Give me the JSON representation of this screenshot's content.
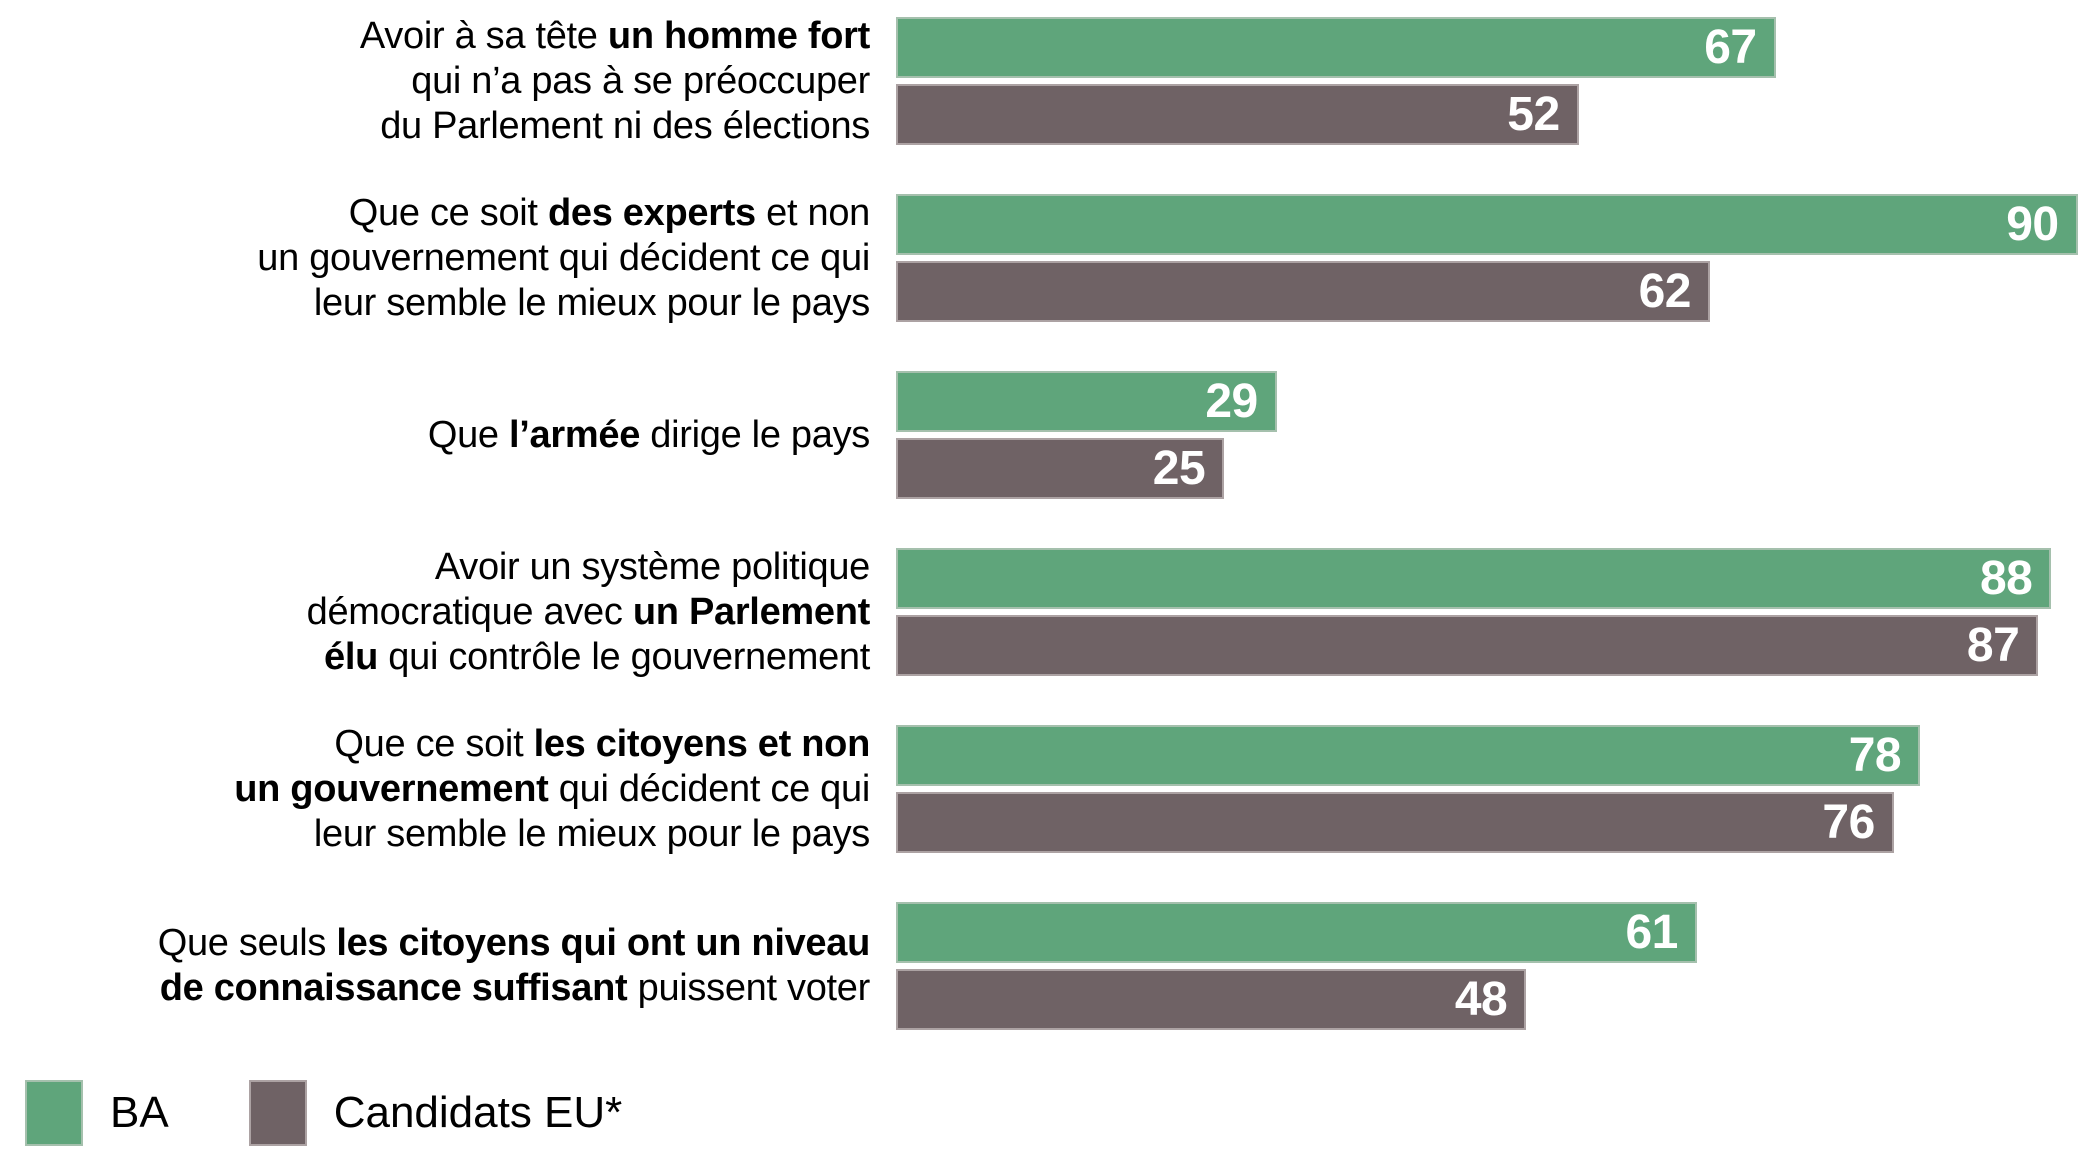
{
  "chart_data": {
    "type": "bar",
    "orientation": "horizontal",
    "title": "",
    "xlabel": "",
    "ylabel": "",
    "xlim": [
      0,
      91.4
    ],
    "grid": false,
    "legend_position": "bottom-left",
    "series_order": [
      "BA",
      "Candidats EU*"
    ],
    "bar_colors": {
      "BA": "#5FA57B",
      "Candidats EU*": "#6F6265"
    },
    "value_label_color": "#FFFFFF",
    "categories": [
      "Avoir à sa tête un homme fort qui n’a pas à se préoccuper du Parlement ni des élections",
      "Que ce soit des experts et non un gouvernement qui décident ce qui leur semble le mieux pour le pays",
      "Que l’armée dirige le pays",
      "Avoir un système politique démocratique avec un Parlement élu qui contrôle le gouvernement",
      "Que ce soit les citoyens et non un gouvernement qui décident ce qui leur semble le mieux pour le pays",
      "Que seuls les citoyens qui ont un niveau de connaissance suffisant puissent voter"
    ],
    "series": [
      {
        "name": "BA",
        "values": [
          67,
          90,
          29,
          88,
          78,
          61
        ]
      },
      {
        "name": "Candidats EU*",
        "values": [
          52,
          62,
          25,
          87,
          76,
          48
        ]
      }
    ],
    "groups": [
      {
        "lines": [
          [
            {
              "t": "Avoir à sa tête ",
              "b": false
            },
            {
              "t": "un homme fort",
              "b": true
            }
          ],
          [
            {
              "t": "qui n’a pas à se préoccuper",
              "b": false
            }
          ],
          [
            {
              "t": "du Parlement ni des élections",
              "b": false
            }
          ]
        ],
        "ba": 67,
        "eu": 52
      },
      {
        "lines": [
          [
            {
              "t": "Que ce soit ",
              "b": false
            },
            {
              "t": "des experts",
              "b": true
            },
            {
              "t": " et non",
              "b": false
            }
          ],
          [
            {
              "t": "un gouvernement qui décident ce qui",
              "b": false
            }
          ],
          [
            {
              "t": "leur semble le mieux pour le pays",
              "b": false
            }
          ]
        ],
        "ba": 90,
        "eu": 62
      },
      {
        "lines": [
          [
            {
              "t": "Que ",
              "b": false
            },
            {
              "t": "l’armée",
              "b": true
            },
            {
              "t": " dirige le pays",
              "b": false
            }
          ]
        ],
        "ba": 29,
        "eu": 25
      },
      {
        "lines": [
          [
            {
              "t": "Avoir un système politique",
              "b": false
            }
          ],
          [
            {
              "t": "démocratique avec ",
              "b": false
            },
            {
              "t": "un Parlement",
              "b": true
            }
          ],
          [
            {
              "t": "élu",
              "b": true
            },
            {
              "t": " qui contrôle le gouvernement",
              "b": false
            }
          ]
        ],
        "ba": 88,
        "eu": 87
      },
      {
        "lines": [
          [
            {
              "t": "Que ce soit ",
              "b": false
            },
            {
              "t": "les citoyens et non",
              "b": true
            }
          ],
          [
            {
              "t": "un gouvernement",
              "b": true
            },
            {
              "t": " qui décident ce qui",
              "b": false
            }
          ],
          [
            {
              "t": "leur semble le mieux pour le pays",
              "b": false
            }
          ]
        ],
        "ba": 78,
        "eu": 76
      },
      {
        "lines": [
          [
            {
              "t": "Que seuls ",
              "b": false
            },
            {
              "t": "les citoyens qui ont un niveau",
              "b": true
            }
          ],
          [
            {
              "t": "de connaissance suffisant",
              "b": true
            },
            {
              "t": " puissent voter",
              "b": false
            }
          ]
        ],
        "ba": 61,
        "eu": 48
      }
    ]
  },
  "legend": {
    "items": [
      {
        "label": "BA",
        "color": "#5FA57B"
      },
      {
        "label": "Candidats EU*",
        "color": "#6F6265"
      }
    ]
  }
}
